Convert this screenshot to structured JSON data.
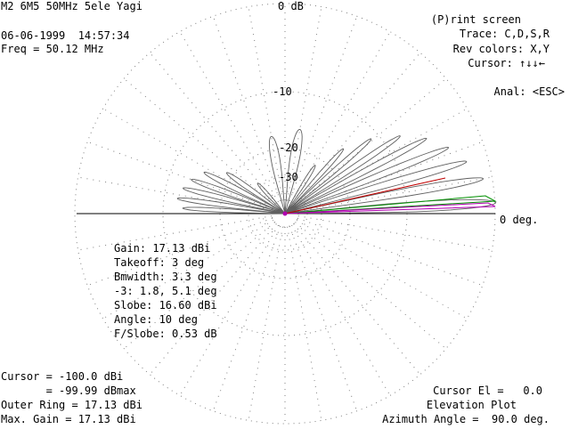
{
  "header": {
    "title": "M2 6M5 50MHz 5ele Yagi",
    "datetime": "06-06-1999  14:57:34",
    "freq": "Freq = 50.12 MHz",
    "top_ring_label": "0 dB"
  },
  "menu": {
    "print": "(P)rint screen",
    "trace": "Trace: C,D,S,R",
    "rev_colors": "Rev colors: X,Y",
    "cursor": "Cursor: ↑↓↓←",
    "anal": "Anal: <ESC>"
  },
  "rings": {
    "r10": "-10",
    "r20": "-20",
    "r30": "-30"
  },
  "axis": {
    "zero_deg": "0 deg."
  },
  "stats": {
    "gain": "Gain: 17.13 dBi",
    "takeoff": "Takeoff: 3 deg",
    "bmwidth": "Bmwidth: 3.3 deg",
    "minus3": "-3: 1.8, 5.1 deg",
    "slobe": "Slobe: 16.60 dBi",
    "angle": "Angle: 10 deg",
    "fslobe": "F/Slobe: 0.53 dB"
  },
  "footer": {
    "cursor": "Cursor = -100.0 dBi",
    "dbmax": "       = -99.99 dBmax",
    "outer_ring": "Outer Ring = 17.13 dBi",
    "max_gain": "Max. Gain = 17.13 dBi",
    "cursor_el": "Cursor El =   0.0",
    "plot_type": "Elevation Plot",
    "azimuth": "Azimuth Angle =  90.0 deg."
  },
  "colors": {
    "background": "#ffffff",
    "text": "#000000",
    "grid": "#808080",
    "pattern": "#606060",
    "cursor_trace_red": "#c00000",
    "trace_green": "#009000",
    "trace_magenta": "#b000b0"
  }
}
